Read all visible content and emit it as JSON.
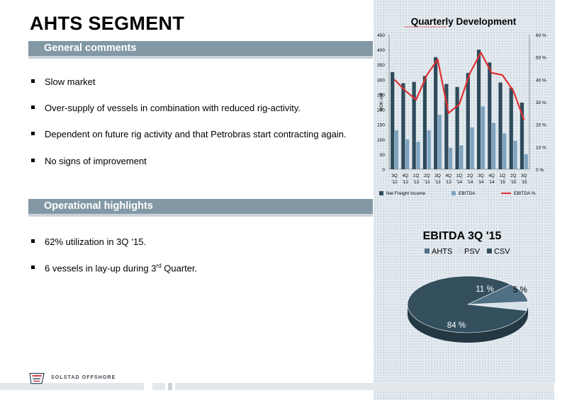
{
  "slide": {
    "title": "AHTS SEGMENT",
    "general": {
      "heading": "General comments",
      "bullets": [
        "Slow market",
        "Over-supply of vessels in combination with reduced rig-activity.",
        "Dependent on  future rig activity and that Petrobras start contracting again.",
        "No signs of improvement"
      ]
    },
    "operational": {
      "heading": "Operational highlights",
      "bullet1": "62% utilization in 3Q ’15.",
      "bullet2_pre": "6 vessels in lay-up during 3",
      "bullet2_sup": "rd",
      "bullet2_post": " Quarter."
    }
  },
  "footer": {
    "company": "SOLSTAD OFFSHORE"
  },
  "chart_data": [
    {
      "type": "bar",
      "title": "Quarterly Development",
      "ylabel": "NOK mill",
      "categories": [
        "3Q '12",
        "4Q '12",
        "1Q '13",
        "2Q '13",
        "3Q '13",
        "4Q '13",
        "1Q '14",
        "2Q '14",
        "3Q '14",
        "4Q '14",
        "1Q '15",
        "2Q '15",
        "3Q '15"
      ],
      "category_top": [
        "3Q",
        "4Q",
        "1Q",
        "2Q",
        "3Q",
        "4Q",
        "1Q",
        "2Q",
        "3Q",
        "4Q",
        "1Q",
        "2Q",
        "3Q"
      ],
      "category_bottom": [
        "'12",
        "'12",
        "'13",
        "'13",
        "'13",
        "'13",
        "'14",
        "'14",
        "'14",
        "'14",
        "'15",
        "'15",
        "'15"
      ],
      "ylim": [
        0,
        450
      ],
      "y_ticks": [
        "0",
        "50",
        "100",
        "150",
        "200",
        "250",
        "300",
        "350",
        "400",
        "450"
      ],
      "y2lim": [
        0,
        60
      ],
      "y2_ticks": [
        "0 %",
        "10 %",
        "20 %",
        "30 %",
        "40 %",
        "50 %",
        "60 %"
      ],
      "series": [
        {
          "name": "Net Freight Income",
          "color": "#2e4a5b",
          "values": [
            325,
            288,
            292,
            312,
            375,
            285,
            275,
            322,
            400,
            357,
            290,
            272,
            223
          ]
        },
        {
          "name": "EBITDA",
          "color": "#7ea3bf",
          "values": [
            130,
            100,
            92,
            130,
            182,
            72,
            80,
            140,
            210,
            155,
            120,
            95,
            50
          ]
        },
        {
          "name": "EBITDA %",
          "color": "#e03030",
          "type": "line",
          "axis": "secondary",
          "values": [
            40,
            35,
            31,
            42,
            49,
            25,
            29,
            43,
            52,
            43,
            42,
            35,
            22
          ]
        }
      ],
      "legend": "bottom"
    },
    {
      "type": "pie",
      "title": "EBITDA 3Q '15",
      "labels": [
        "AHTS",
        "PSV",
        "CSV"
      ],
      "values": [
        11,
        5,
        84
      ],
      "data_labels": [
        "11 %",
        "5 %",
        "84 %"
      ],
      "colors": [
        "#4f6f83",
        "#d6e1e8",
        "#34505f"
      ],
      "legend": "top"
    }
  ]
}
